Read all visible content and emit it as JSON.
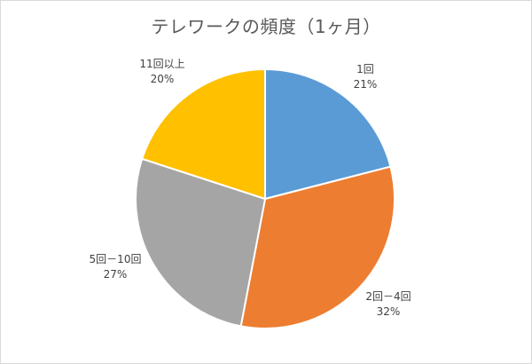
{
  "chart_data": {
    "type": "pie",
    "title": "テレワークの頻度（1ヶ月）",
    "start_angle_deg": 0,
    "direction": "clockwise",
    "slices": [
      {
        "label": "1回",
        "value": 21,
        "value_label": "21%",
        "color": "#5b9bd5"
      },
      {
        "label": "2回－4回",
        "value": 32,
        "value_label": "32%",
        "color": "#ed7d31"
      },
      {
        "label": "5回－10回",
        "value": 27,
        "value_label": "27%",
        "color": "#a5a5a5"
      },
      {
        "label": "11回以上",
        "value": 20,
        "value_label": "20%",
        "color": "#ffc000"
      }
    ]
  }
}
